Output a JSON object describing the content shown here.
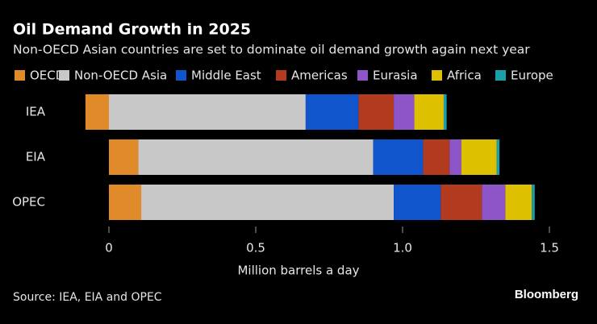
{
  "chart_data": {
    "type": "stacked-barh",
    "title": "Oil Demand Growth in 2025",
    "subtitle": "Non-OECD Asian countries are set to dominate oil demand growth again next year",
    "x_label": "Million barrels a day",
    "source": "Source: IEA, EIA and OPEC",
    "brand": "Bloomberg",
    "categories": [
      "IEA",
      "EIA",
      "OPEC"
    ],
    "series": [
      {
        "name": "OECD",
        "color": "#e08a2a",
        "values": [
          -0.08,
          0.1,
          0.11
        ]
      },
      {
        "name": "Non-OECD Asia",
        "color": "#c8c8c8",
        "values": [
          0.67,
          0.8,
          0.86
        ]
      },
      {
        "name": "Middle East",
        "color": "#1155cc",
        "values": [
          0.18,
          0.17,
          0.16
        ]
      },
      {
        "name": "Americas",
        "color": "#b23a1f",
        "values": [
          0.12,
          0.09,
          0.14
        ]
      },
      {
        "name": "Eurasia",
        "color": "#8e55c8",
        "values": [
          0.07,
          0.04,
          0.08
        ]
      },
      {
        "name": "Africa",
        "color": "#ddc000",
        "values": [
          0.1,
          0.12,
          0.09
        ]
      },
      {
        "name": "Europe",
        "color": "#1a9fa8",
        "values": [
          0.01,
          0.01,
          0.01
        ]
      }
    ],
    "xlim": [
      -0.1,
      1.6
    ],
    "xticks": [
      0,
      0.5,
      {
        "value": 1,
        "label": "1.0"
      },
      1.5
    ]
  }
}
